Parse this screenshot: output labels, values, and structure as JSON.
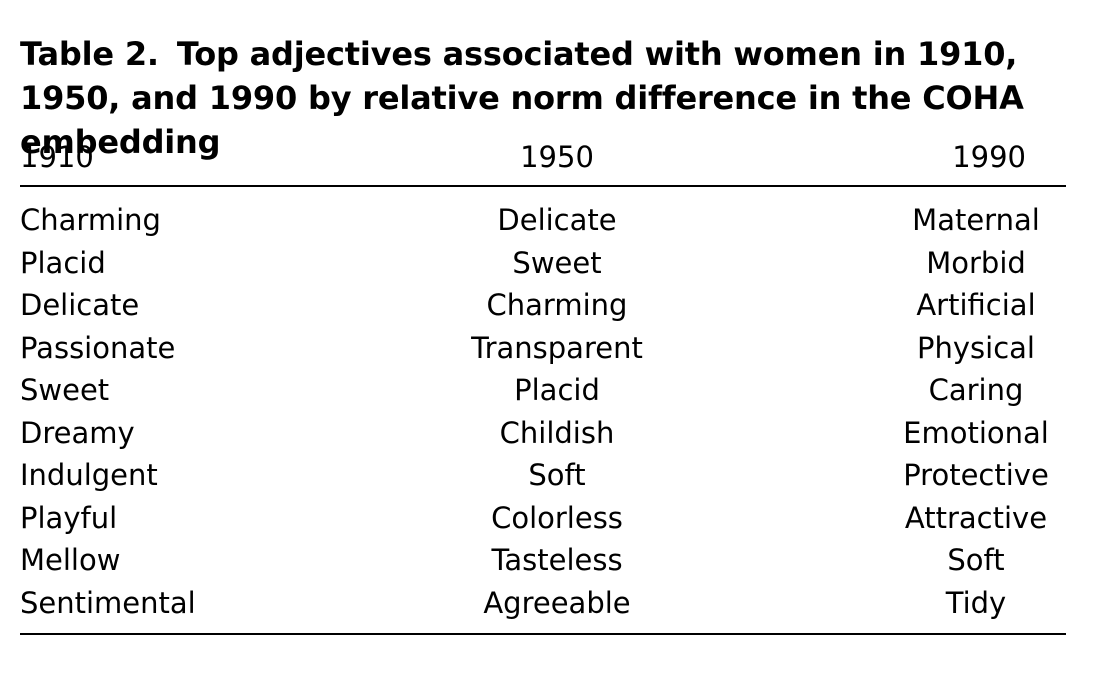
{
  "caption": {
    "label": "Table 2.",
    "text": "Top adjectives associated with women in 1910, 1950, and 1990 by relative norm difference in the COHA embedding"
  },
  "columns": [
    "1910",
    "1950",
    "1990"
  ],
  "rows": [
    [
      "Charming",
      "Delicate",
      "Maternal"
    ],
    [
      "Placid",
      "Sweet",
      "Morbid"
    ],
    [
      "Delicate",
      "Charming",
      "Artificial"
    ],
    [
      "Passionate",
      "Transparent",
      "Physical"
    ],
    [
      "Sweet",
      "Placid",
      "Caring"
    ],
    [
      "Dreamy",
      "Childish",
      "Emotional"
    ],
    [
      "Indulgent",
      "Soft",
      "Protective"
    ],
    [
      "Playful",
      "Colorless",
      "Attractive"
    ],
    [
      "Mellow",
      "Tasteless",
      "Soft"
    ],
    [
      "Sentimental",
      "Agreeable",
      "Tidy"
    ]
  ]
}
